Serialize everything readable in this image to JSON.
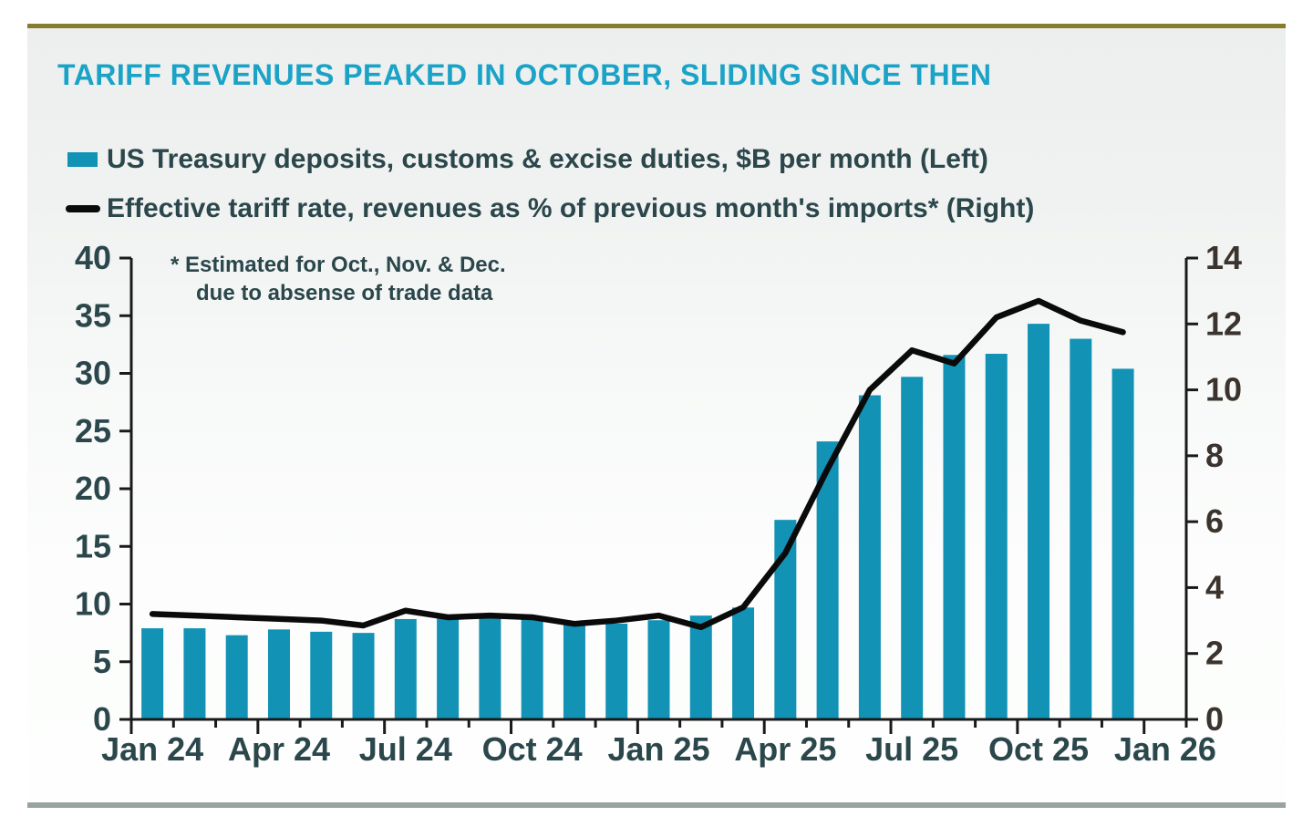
{
  "page": {
    "title": "TARIFF REVENUES PEAKED IN OCTOBER, SLIDING SINCE THEN"
  },
  "legend": {
    "items": [
      {
        "label": "US Treasury deposits, customs & excise duties, $B per month (Left)",
        "swatch": "bar-swatch"
      },
      {
        "label": "Effective tariff rate, revenues as % of previous month's imports* (Right)",
        "swatch": "line-swatch"
      }
    ]
  },
  "annotation": {
    "line1": "* Estimated for Oct., Nov. & Dec.",
    "line2": "due to absense of trade data"
  },
  "colors": {
    "accent_teal": "#1292B5",
    "title_cyan": "#1BA3C7",
    "dark_teal_text": "#2B474B",
    "right_axis_text": "#3B332E",
    "line_black": "#0A0A0A",
    "axis_black": "#1A1A1A",
    "olive_rule": "#867C2B",
    "bottom_rule": "#9BA3A1"
  },
  "chart_data": {
    "type": "combo_bar_line",
    "title": "TARIFF REVENUES PEAKED IN OCTOBER, SLIDING SINCE THEN",
    "categories": [
      "Jan 24",
      "Feb 24",
      "Mar 24",
      "Apr 24",
      "May 24",
      "Jun 24",
      "Jul 24",
      "Aug 24",
      "Sep 24",
      "Oct 24",
      "Nov 24",
      "Dec 24",
      "Jan 25",
      "Feb 25",
      "Mar 25",
      "Apr 25",
      "May 25",
      "Jun 25",
      "Jul 25",
      "Aug 25",
      "Sep 25",
      "Oct 25",
      "Nov 25",
      "Dec 25"
    ],
    "series": [
      {
        "name": "US Treasury deposits, customs & excise duties, $B per month (Left)",
        "type": "bar",
        "axis": "left",
        "values": [
          7.9,
          7.9,
          7.3,
          7.8,
          7.6,
          7.5,
          8.7,
          8.9,
          8.9,
          8.7,
          8.3,
          8.3,
          8.6,
          9.0,
          9.7,
          17.3,
          24.1,
          28.1,
          29.7,
          31.6,
          31.7,
          34.3,
          33.0,
          30.4
        ]
      },
      {
        "name": "Effective tariff rate, revenues as % of previous month's imports* (Right)",
        "type": "line",
        "axis": "right",
        "values": [
          3.2,
          3.15,
          3.1,
          3.05,
          3.0,
          2.85,
          3.3,
          3.1,
          3.15,
          3.1,
          2.9,
          3.0,
          3.15,
          2.8,
          3.4,
          5.05,
          7.6,
          10.0,
          11.2,
          10.8,
          12.2,
          12.7,
          12.1,
          11.75
        ]
      }
    ],
    "x_tick_labels": [
      "Jan 24",
      "Apr 24",
      "Jul 24",
      "Oct 24",
      "Jan 25",
      "Apr 25",
      "Jul 25",
      "Oct 25",
      "Jan 26"
    ],
    "x_tick_label_slots": [
      0,
      3,
      6,
      9,
      12,
      15,
      18,
      21,
      24
    ],
    "left_axis": {
      "min": 0,
      "max": 40,
      "step": 5,
      "ticks": [
        0,
        5,
        10,
        15,
        20,
        25,
        30,
        35,
        40
      ]
    },
    "right_axis": {
      "min": 0,
      "max": 14,
      "step": 2,
      "ticks": [
        0,
        2,
        4,
        6,
        8,
        10,
        12,
        14
      ]
    },
    "grid": false,
    "legend_position": "top-left"
  }
}
